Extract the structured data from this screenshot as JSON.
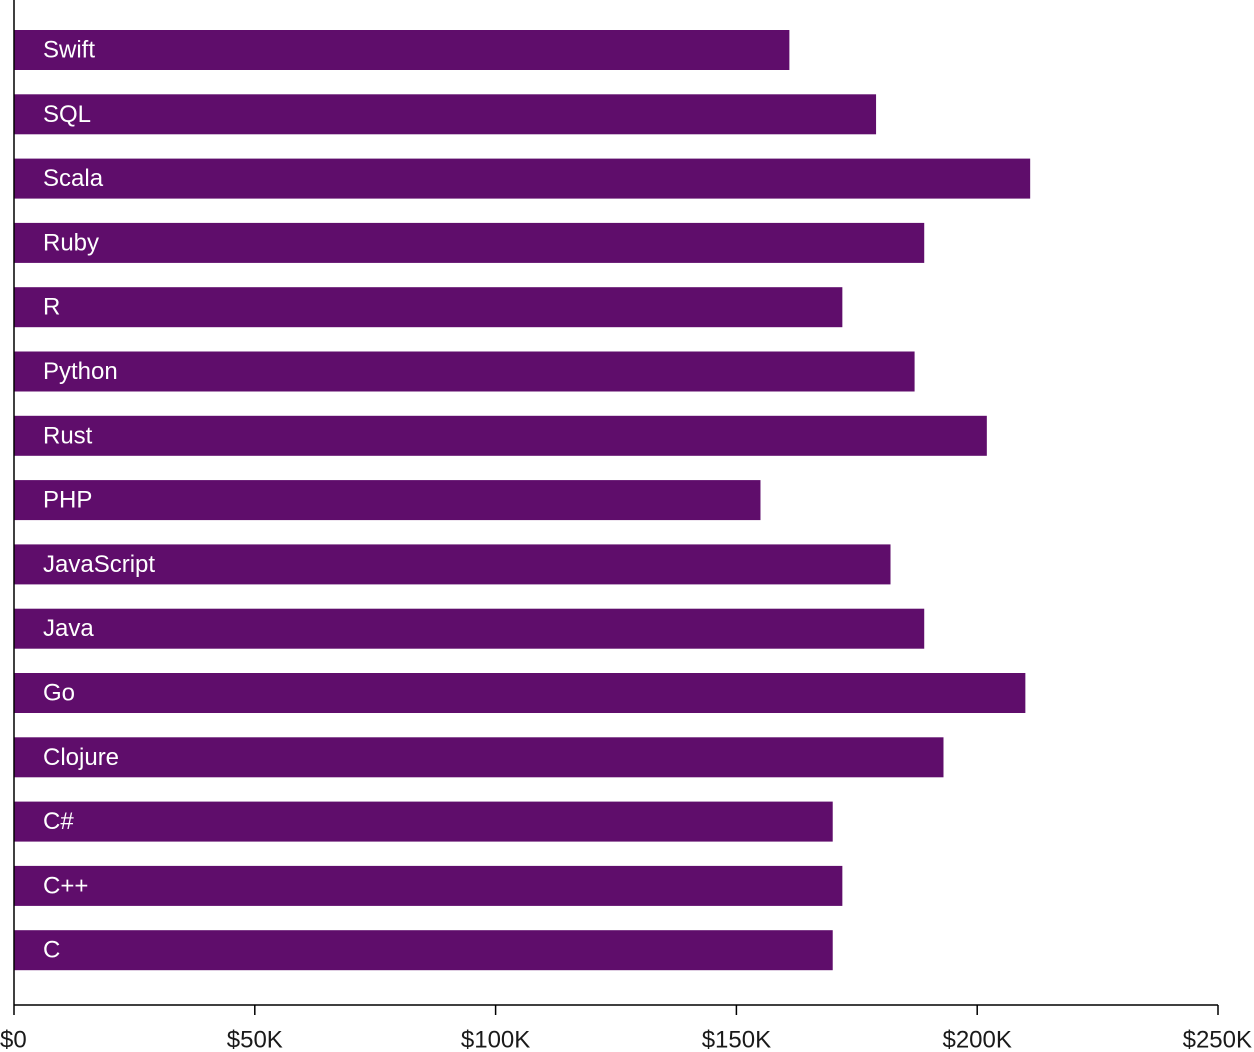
{
  "chart_data": {
    "type": "bar",
    "orientation": "horizontal",
    "categories": [
      "Swift",
      "SQL",
      "Scala",
      "Ruby",
      "R",
      "Python",
      "Rust",
      "PHP",
      "JavaScript",
      "Java",
      "Go",
      "Clojure",
      "C#",
      "C++",
      "C"
    ],
    "values": [
      161000,
      179000,
      211000,
      189000,
      172000,
      187000,
      202000,
      155000,
      182000,
      189000,
      210000,
      193000,
      170000,
      172000,
      170000
    ],
    "xlim": [
      0,
      250000
    ],
    "x_ticks": [
      0,
      50000,
      100000,
      150000,
      200000,
      250000
    ],
    "x_tick_labels": [
      "$0",
      "$50K",
      "$100K",
      "$150K",
      "$200K",
      "$250K"
    ],
    "bar_color": "#5f0d6b",
    "label_color": "#ffffff",
    "labels_inside_bars": true,
    "grid": false,
    "legend": "none",
    "title": "",
    "xlabel": "",
    "ylabel": ""
  }
}
